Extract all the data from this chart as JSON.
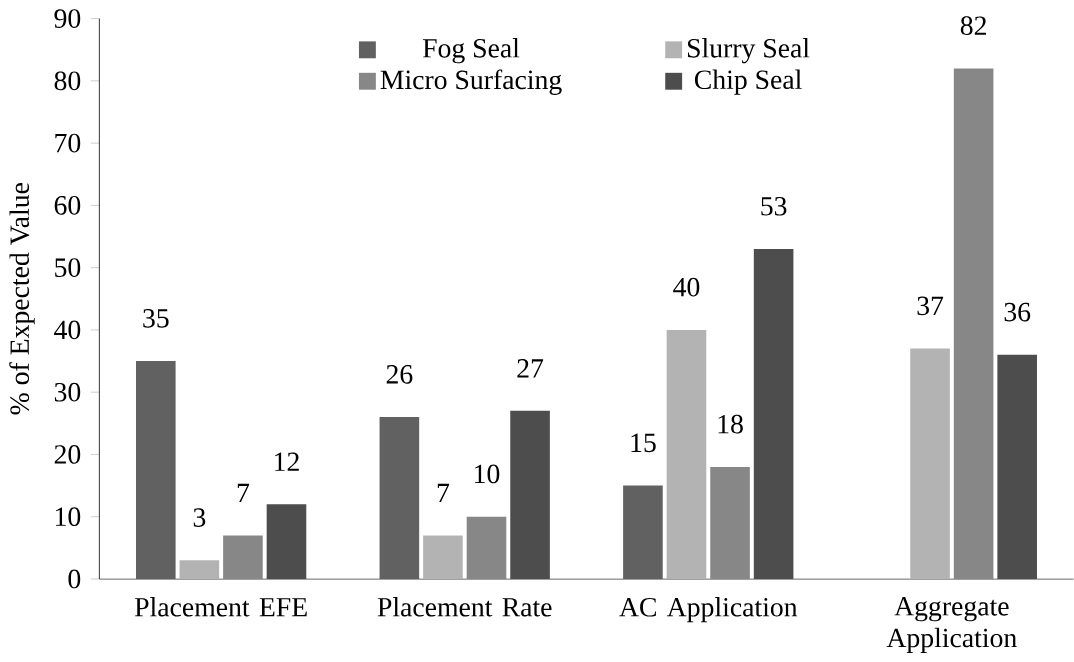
{
  "chart_data": {
    "type": "bar",
    "ylabel": "% of Expected Value",
    "categories": [
      "Placement EFE",
      "Placement Rate",
      "AC Application",
      "Aggregate Application"
    ],
    "series": [
      {
        "name": "Fog Seal",
        "color": "#616161",
        "values": [
          35,
          26,
          15,
          null
        ]
      },
      {
        "name": "Slurry Seal",
        "color": "#b3b3b3",
        "values": [
          3,
          7,
          40,
          37
        ]
      },
      {
        "name": "Micro Surfacing",
        "color": "#878787",
        "values": [
          7,
          10,
          18,
          82
        ]
      },
      {
        "name": "Chip Seal",
        "color": "#4d4d4d",
        "values": [
          12,
          27,
          53,
          36
        ]
      }
    ],
    "ylim": [
      0,
      90
    ],
    "yticks": [
      0,
      10,
      20,
      30,
      40,
      50,
      60,
      70,
      80,
      90
    ],
    "data_labels": true,
    "grid": false,
    "legend": "top"
  }
}
